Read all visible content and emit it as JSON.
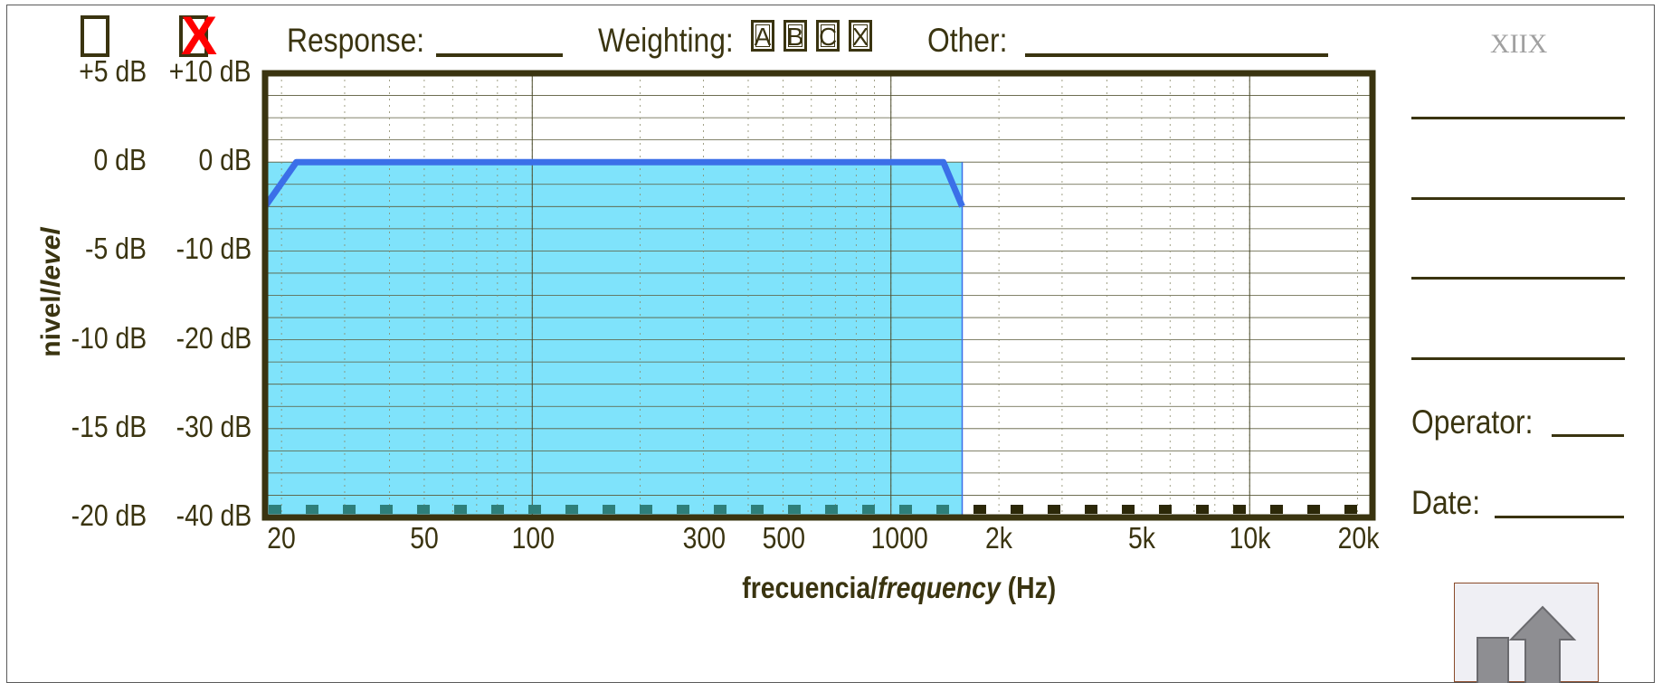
{
  "header": {
    "checkbox_1_checked": false,
    "checkbox_2_checked": true,
    "checkbox_2_mark": "X",
    "response_label": "Response:",
    "weighting_label": "Weighting:",
    "weighting_options": [
      "A",
      "B",
      "C",
      "X"
    ],
    "other_label": "Other:",
    "logo_text": "XIIX"
  },
  "side_panel": {
    "operator_label": "Operator:",
    "date_label": "Date:",
    "home_icon": "home-icon"
  },
  "colors": {
    "frame": "#3a3410",
    "fill": "#7fe3fb",
    "line": "#3b6fe8",
    "mark": "#ff0000"
  },
  "chart_data": {
    "type": "area",
    "title": "",
    "xlabel_pre": "frecuencia/",
    "xlabel_italic": "frequency",
    "xlabel_post": " (Hz)",
    "ylabel_pre": "nivel/",
    "ylabel_italic": "level",
    "x_scale": "log",
    "xlim": [
      18,
      22000
    ],
    "ylim_left": [
      -20,
      5
    ],
    "ylim_right": [
      -40,
      10
    ],
    "x_ticks": [
      "20",
      "50",
      "100",
      "300",
      "500",
      "1000",
      "2k",
      "5k",
      "10k",
      "20k"
    ],
    "x_tick_values": [
      20,
      50,
      100,
      300,
      500,
      1000,
      2000,
      5000,
      10000,
      20000
    ],
    "y_ticks_left": [
      "+5 dB",
      "0 dB",
      "-5 dB",
      "-10 dB",
      "-15 dB",
      "-20 dB"
    ],
    "y_ticks_right": [
      "+10 dB",
      "0 dB",
      "-10 dB",
      "-20 dB",
      "-30 dB",
      "-40 dB"
    ],
    "y_tick_values": [
      10,
      0,
      -10,
      -20,
      -30,
      -40
    ],
    "band": {
      "x_start": 18,
      "x_end": 1580,
      "top": 0
    },
    "series": [
      {
        "x": [
          18,
          22,
          1400,
          1580
        ],
        "y": [
          -5,
          0,
          0,
          -5
        ]
      }
    ],
    "grid": true
  }
}
